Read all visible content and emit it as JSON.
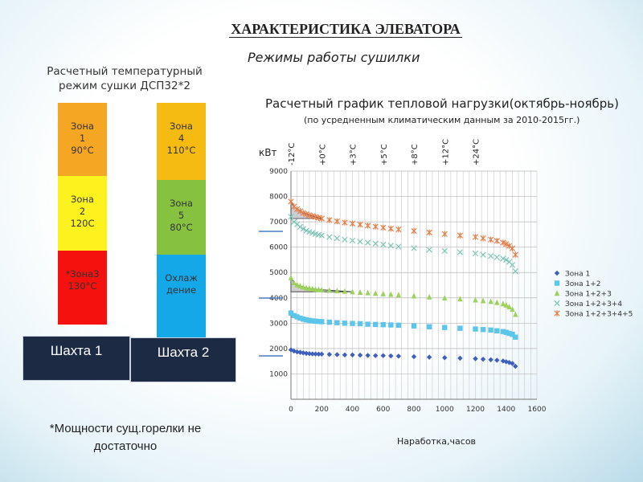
{
  "title": "ХАРАКТЕРИСТИКА ЭЛЕВАТОРА",
  "subtitle": "Режимы работы сушилки",
  "left_heading": [
    "Расчетный температурный",
    "режим сушки ДСП32*2"
  ],
  "shafts": [
    {
      "label": "Шахта 1",
      "zones": [
        {
          "lines": [
            "Зона",
            "1",
            "90°C"
          ],
          "color": "#f5a623"
        },
        {
          "lines": [
            "Зона",
            "2",
            "120С"
          ],
          "color": "#fbf21e"
        },
        {
          "lines": [
            "*Зона3",
            "130°С"
          ],
          "color": "#f5110e"
        }
      ]
    },
    {
      "label": "Шахта 2",
      "zones": [
        {
          "lines": [
            "Зона",
            "4",
            "110°С"
          ],
          "color": "#f5bb10"
        },
        {
          "lines": [
            "Зона",
            "5",
            "80°С"
          ],
          "color": "#86c240"
        },
        {
          "lines": [
            "Охлаж",
            "дение"
          ],
          "color": "#14a8e8"
        }
      ]
    }
  ],
  "footnote": [
    "*Мощности сущ.горелки не",
    "достаточно"
  ],
  "chart_title": "Расчетный график тепловой нагрузки(октябрь-ноябрь)",
  "chart_subtitle": "(по усредненным климатическим данным за 2010-2015гг.)",
  "chart_data": {
    "type": "scatter",
    "ylabel": "кВт",
    "xlabel": "Наработка,часов",
    "xlim": [
      0,
      1600
    ],
    "ylim": [
      0,
      9000
    ],
    "xticks": [
      0,
      200,
      400,
      600,
      800,
      1000,
      1200,
      1400,
      1600
    ],
    "yticks": [
      1000,
      2000,
      3000,
      4000,
      5000,
      6000,
      7000,
      8000,
      9000
    ],
    "temp_markers": [
      {
        "x": 0,
        "label": "-12°C"
      },
      {
        "x": 200,
        "label": "+0°C"
      },
      {
        "x": 400,
        "label": "+3°C"
      },
      {
        "x": 600,
        "label": "+5°C"
      },
      {
        "x": 800,
        "label": "+8°C"
      },
      {
        "x": 1000,
        "label": "+12°C"
      },
      {
        "x": 1200,
        "label": "+24°C"
      }
    ],
    "legend_position": "right",
    "series": [
      {
        "name": "Зона 1",
        "marker": "diamond",
        "color": "#3f5fbf",
        "x": [
          0,
          20,
          40,
          60,
          80,
          100,
          120,
          140,
          160,
          180,
          200,
          250,
          300,
          350,
          400,
          450,
          500,
          550,
          600,
          650,
          700,
          800,
          900,
          1000,
          1100,
          1200,
          1250,
          1300,
          1340,
          1380,
          1400,
          1420,
          1440,
          1460
        ],
        "y": [
          1950,
          1900,
          1870,
          1850,
          1830,
          1810,
          1800,
          1790,
          1785,
          1780,
          1780,
          1770,
          1760,
          1750,
          1750,
          1740,
          1730,
          1720,
          1720,
          1710,
          1700,
          1680,
          1660,
          1640,
          1620,
          1600,
          1580,
          1560,
          1540,
          1510,
          1480,
          1450,
          1410,
          1300
        ]
      },
      {
        "name": "Зона 1+2",
        "marker": "square",
        "color": "#5bc5ea",
        "x": [
          0,
          20,
          40,
          60,
          80,
          100,
          120,
          140,
          160,
          180,
          200,
          250,
          300,
          350,
          400,
          450,
          500,
          550,
          600,
          650,
          700,
          800,
          900,
          1000,
          1100,
          1200,
          1250,
          1300,
          1340,
          1380,
          1400,
          1420,
          1440,
          1460
        ],
        "y": [
          3400,
          3300,
          3250,
          3200,
          3160,
          3130,
          3110,
          3090,
          3080,
          3070,
          3060,
          3040,
          3020,
          3000,
          2990,
          2980,
          2960,
          2950,
          2940,
          2930,
          2920,
          2890,
          2860,
          2830,
          2800,
          2770,
          2750,
          2730,
          2700,
          2670,
          2640,
          2600,
          2560,
          2450
        ]
      },
      {
        "name": "Зона 1+2+3",
        "marker": "triangle",
        "color": "#9bd25a",
        "x": [
          0,
          20,
          40,
          60,
          80,
          100,
          120,
          140,
          160,
          180,
          200,
          250,
          300,
          350,
          400,
          450,
          500,
          550,
          600,
          650,
          700,
          800,
          900,
          1000,
          1100,
          1200,
          1250,
          1300,
          1340,
          1380,
          1400,
          1420,
          1440,
          1460
        ],
        "y": [
          4800,
          4600,
          4520,
          4470,
          4430,
          4400,
          4380,
          4360,
          4340,
          4330,
          4320,
          4300,
          4280,
          4260,
          4240,
          4220,
          4200,
          4180,
          4160,
          4140,
          4120,
          4080,
          4040,
          4000,
          3960,
          3920,
          3890,
          3860,
          3820,
          3770,
          3720,
          3650,
          3550,
          3350
        ]
      },
      {
        "name": "Зона 1+2+3+4",
        "marker": "x",
        "color": "#7cc6b8",
        "x": [
          0,
          20,
          40,
          60,
          80,
          100,
          120,
          140,
          160,
          180,
          200,
          250,
          300,
          350,
          400,
          450,
          500,
          550,
          600,
          650,
          700,
          800,
          900,
          1000,
          1100,
          1200,
          1250,
          1300,
          1340,
          1380,
          1400,
          1420,
          1440,
          1460
        ],
        "y": [
          7200,
          7000,
          6900,
          6800,
          6720,
          6650,
          6600,
          6560,
          6520,
          6490,
          6460,
          6400,
          6350,
          6300,
          6260,
          6220,
          6180,
          6140,
          6100,
          6060,
          6020,
          5960,
          5900,
          5850,
          5800,
          5750,
          5700,
          5650,
          5600,
          5550,
          5500,
          5420,
          5300,
          5050
        ]
      },
      {
        "name": "Зона 1+2+3+4+5",
        "marker": "asterisk",
        "color": "#e67e4a",
        "x": [
          0,
          20,
          40,
          60,
          80,
          100,
          120,
          140,
          160,
          180,
          200,
          250,
          300,
          350,
          400,
          450,
          500,
          550,
          600,
          650,
          700,
          800,
          900,
          1000,
          1100,
          1200,
          1250,
          1300,
          1340,
          1380,
          1400,
          1420,
          1440,
          1460
        ],
        "y": [
          7800,
          7600,
          7500,
          7420,
          7350,
          7300,
          7260,
          7220,
          7190,
          7160,
          7130,
          7070,
          7020,
          6970,
          6930,
          6890,
          6850,
          6810,
          6770,
          6730,
          6700,
          6640,
          6580,
          6520,
          6460,
          6400,
          6350,
          6300,
          6250,
          6180,
          6120,
          6050,
          5950,
          5700
        ]
      }
    ]
  }
}
